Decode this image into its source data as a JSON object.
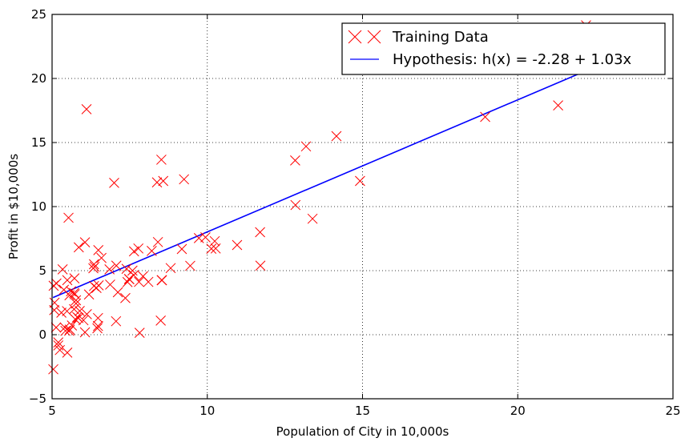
{
  "chart_data": {
    "type": "scatter",
    "title": "",
    "xlabel": "Population of City in 10,000s",
    "ylabel": "Profit in $10,000s",
    "xlim": [
      5,
      25
    ],
    "ylim": [
      -5,
      25
    ],
    "xticks": [
      5,
      10,
      15,
      20,
      25
    ],
    "yticks": [
      -5,
      0,
      5,
      10,
      15,
      20,
      25
    ],
    "xtick_labels": [
      "5",
      "10",
      "15",
      "20",
      "25"
    ],
    "ytick_labels": [
      "−5",
      "0",
      "5",
      "10",
      "15",
      "20",
      "25"
    ],
    "grid": true,
    "legend_position": "top-right",
    "series": [
      {
        "name": "Training Data",
        "kind": "scatter",
        "marker": "x",
        "color": "#ff0000",
        "x": [
          6.11,
          5.53,
          8.52,
          7.0,
          5.86,
          8.38,
          7.48,
          8.58,
          6.49,
          5.05,
          5.71,
          14.16,
          5.73,
          8.41,
          5.64,
          5.38,
          6.37,
          5.13,
          6.43,
          7.07,
          6.19,
          20.27,
          5.49,
          6.33,
          5.56,
          18.95,
          12.83,
          10.96,
          13.18,
          22.2,
          5.25,
          6.59,
          9.25,
          5.89,
          8.21,
          7.93,
          8.1,
          5.61,
          12.84,
          6.35,
          5.41,
          6.87,
          11.71,
          5.77,
          7.78,
          7.06,
          5.34,
          10.27,
          5.49,
          6.06,
          5.71,
          7.64,
          7.59,
          7.4,
          5.08,
          6.5,
          5.57,
          6.01,
          5.43,
          5.2,
          5.76,
          9.18,
          5.48,
          5.81,
          11.7,
          5.77,
          7.8,
          10.24,
          8.54,
          6.06,
          8.82,
          5.2,
          13.39,
          5.04,
          9.45,
          6.48,
          6.35,
          9.73,
          7.43,
          5.55,
          7.12,
          14.92,
          5.14,
          5.72,
          7.82,
          5.3,
          9.94,
          5.85,
          8.53,
          7.36,
          21.3,
          6.12,
          6.46,
          7.63,
          8.5,
          10.13,
          7.49,
          6.85,
          6.48,
          5.07
        ],
        "y": [
          17.6,
          9.13,
          13.66,
          11.85,
          6.82,
          11.89,
          4.35,
          12.0,
          6.6,
          3.82,
          3.25,
          15.5,
          3.16,
          7.23,
          0.72,
          3.51,
          5.3,
          0.56,
          3.65,
          5.39,
          3.14,
          21.77,
          4.26,
          5.19,
          3.08,
          17.0,
          13.6,
          7.0,
          14.7,
          24.15,
          -1.2,
          5.99,
          12.13,
          1.85,
          6.54,
          4.56,
          4.12,
          3.39,
          10.12,
          5.5,
          0.56,
          3.91,
          5.39,
          2.44,
          6.73,
          1.05,
          5.1,
          6.73,
          -1.4,
          7.21,
          1.99,
          6.51,
          5.0,
          5.14,
          2.5,
          3.85,
          0.4,
          1.13,
          0.3,
          -0.84,
          1.17,
          6.69,
          1.84,
          1.38,
          8.0,
          2.69,
          4.12,
          7.3,
          4.25,
          0.19,
          5.2,
          -0.6,
          9.05,
          -2.7,
          5.38,
          0.68,
          3.8,
          7.54,
          4.11,
          0.3,
          3.31,
          12.0,
          4.0,
          4.4,
          0.15,
          1.72,
          7.6,
          1.3,
          4.26,
          2.86,
          17.9,
          1.6,
          0.5,
          4.65,
          1.1,
          6.71,
          4.33,
          5.1,
          1.3,
          1.92
        ]
      },
      {
        "name": "Hypothesis: h(x) = -2.28 + 1.03x",
        "kind": "line",
        "color": "#0000ff",
        "x": [
          5.03,
          22.2
        ],
        "y": [
          2.9,
          20.6
        ]
      }
    ]
  }
}
